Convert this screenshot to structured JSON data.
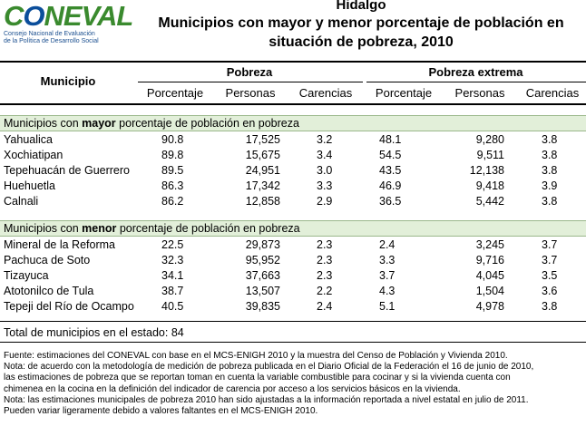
{
  "logo": {
    "word_pre": "C",
    "word_o": "O",
    "word_post": "NEVAL",
    "sub_line1": "Consejo Nacional de Evaluación",
    "sub_line2": "de la Política de Desarrollo Social"
  },
  "title": {
    "state": "Hidalgo",
    "line1": "Municipios con mayor y menor porcentaje de población en",
    "line2": "situación de pobreza, 2010"
  },
  "headers": {
    "municipio": "Municipio",
    "pobreza": "Pobreza",
    "pobreza_extrema": "Pobreza extrema",
    "porcentaje": "Porcentaje",
    "personas": "Personas",
    "carencias": "Carencias"
  },
  "groups": [
    {
      "label_pre": "Municipios con ",
      "label_bold": "mayor",
      "label_post": " porcentaje de población en pobreza",
      "rows": [
        {
          "municipio": "Yahualica",
          "p_pct": "90.8",
          "p_pers": "17,525",
          "p_car": "3.2",
          "e_pct": "48.1",
          "e_pers": "9,280",
          "e_car": "3.8"
        },
        {
          "municipio": "Xochiatipan",
          "p_pct": "89.8",
          "p_pers": "15,675",
          "p_car": "3.4",
          "e_pct": "54.5",
          "e_pers": "9,511",
          "e_car": "3.8"
        },
        {
          "municipio": "Tepehuacán de Guerrero",
          "p_pct": "89.5",
          "p_pers": "24,951",
          "p_car": "3.0",
          "e_pct": "43.5",
          "e_pers": "12,138",
          "e_car": "3.8"
        },
        {
          "municipio": "Huehuetla",
          "p_pct": "86.3",
          "p_pers": "17,342",
          "p_car": "3.3",
          "e_pct": "46.9",
          "e_pers": "9,418",
          "e_car": "3.9"
        },
        {
          "municipio": "Calnali",
          "p_pct": "86.2",
          "p_pers": "12,858",
          "p_car": "2.9",
          "e_pct": "36.5",
          "e_pers": "5,442",
          "e_car": "3.8"
        }
      ]
    },
    {
      "label_pre": "Municipios con ",
      "label_bold": "menor",
      "label_post": " porcentaje de población en pobreza",
      "rows": [
        {
          "municipio": "Mineral de la Reforma",
          "p_pct": "22.5",
          "p_pers": "29,873",
          "p_car": "2.3",
          "e_pct": "2.4",
          "e_pers": "3,245",
          "e_car": "3.7"
        },
        {
          "municipio": "Pachuca de Soto",
          "p_pct": "32.3",
          "p_pers": "95,952",
          "p_car": "2.3",
          "e_pct": "3.3",
          "e_pers": "9,716",
          "e_car": "3.7"
        },
        {
          "municipio": "Tizayuca",
          "p_pct": "34.1",
          "p_pers": "37,663",
          "p_car": "2.3",
          "e_pct": "3.7",
          "e_pers": "4,045",
          "e_car": "3.5"
        },
        {
          "municipio": "Atotonilco de Tula",
          "p_pct": "38.7",
          "p_pers": "13,507",
          "p_car": "2.2",
          "e_pct": "4.3",
          "e_pers": "1,504",
          "e_car": "3.6"
        },
        {
          "municipio": "Tepeji del Río de Ocampo",
          "p_pct": "40.5",
          "p_pers": "39,835",
          "p_car": "2.4",
          "e_pct": "5.1",
          "e_pers": "4,978",
          "e_car": "3.8"
        }
      ]
    }
  ],
  "total": "Total de municipios en el estado: 84",
  "notes": [
    "Fuente: estimaciones del CONEVAL con base en el MCS-ENIGH 2010 y la muestra del Censo de Población y Vivienda 2010.",
    "Nota: de acuerdo con la metodología de medición de pobreza publicada en el Diario Oficial de la Federación el 16 de junio de 2010,",
    "las estimaciones de pobreza que se reportan toman en cuenta la variable combustible para cocinar y si la vivienda cuenta con",
    "chimenea en la cocina en la definición del indicador de carencia por acceso a los servicios básicos en la vivienda.",
    "Nota: las estimaciones municipales de pobreza 2010 han sido ajustadas a la información reportada a nivel estatal en julio de 2011.",
    "Pueden variar ligeramente debido a valores faltantes en el MCS-ENIGH 2010."
  ]
}
